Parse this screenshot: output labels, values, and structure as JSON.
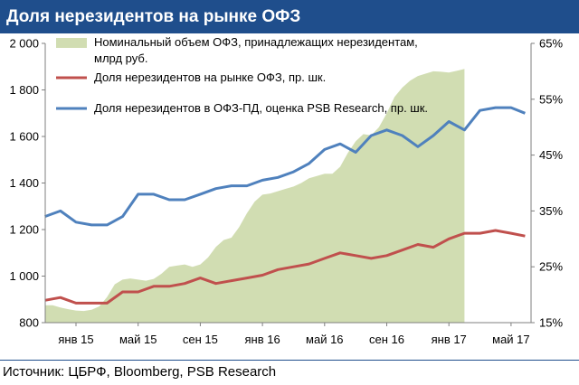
{
  "title": "Доля нерезидентов на рынке ОФЗ",
  "source": "Источник: ЦБРФ, Bloomberg, PSB Research",
  "chart_data": {
    "type": "area+line",
    "x_ticks": [
      "янв 15",
      "май 15",
      "сен 15",
      "янв 16",
      "май 16",
      "сен 16",
      "янв 17",
      "май 17"
    ],
    "y_left": {
      "min": 800,
      "max": 2000,
      "ticks": [
        "800",
        "1 000",
        "1 200",
        "1 400",
        "1 600",
        "1 800",
        "2 000"
      ]
    },
    "y_right": {
      "min": 15,
      "max": 65,
      "unit": "%",
      "ticks": [
        "15%",
        "25%",
        "35%",
        "45%",
        "55%",
        "65%"
      ]
    },
    "grid": false,
    "legend_position": "top",
    "series": [
      {
        "name": "Номинальный объем ОФЗ, принадлежащих нерезидентам, млрд руб.",
        "legend_lines": [
          "Номинальный объем ОФЗ, принадлежащих нерезидентам,",
          "млрд руб."
        ],
        "kind": "area",
        "axis": "left",
        "color": "#d1ddb2",
        "points": [
          [
            0,
            875
          ],
          [
            0.5,
            875
          ],
          [
            1,
            865
          ],
          [
            1.5,
            858
          ],
          [
            2,
            852
          ],
          [
            2.5,
            850
          ],
          [
            3,
            855
          ],
          [
            3.5,
            870
          ],
          [
            4,
            910
          ],
          [
            4.5,
            965
          ],
          [
            5,
            985
          ],
          [
            5.5,
            990
          ],
          [
            6,
            985
          ],
          [
            6.5,
            980
          ],
          [
            7,
            988
          ],
          [
            7.5,
            1010
          ],
          [
            8,
            1040
          ],
          [
            8.5,
            1045
          ],
          [
            9,
            1050
          ],
          [
            9.5,
            1040
          ],
          [
            10,
            1050
          ],
          [
            10.5,
            1080
          ],
          [
            11,
            1125
          ],
          [
            11.5,
            1155
          ],
          [
            12,
            1165
          ],
          [
            12.5,
            1210
          ],
          [
            13,
            1270
          ],
          [
            13.5,
            1320
          ],
          [
            14,
            1350
          ],
          [
            14.5,
            1355
          ],
          [
            15,
            1365
          ],
          [
            15.5,
            1375
          ],
          [
            16,
            1385
          ],
          [
            16.5,
            1400
          ],
          [
            17,
            1420
          ],
          [
            17.5,
            1430
          ],
          [
            18,
            1440
          ],
          [
            18.5,
            1440
          ],
          [
            19,
            1470
          ],
          [
            19.5,
            1530
          ],
          [
            20,
            1580
          ],
          [
            20.5,
            1610
          ],
          [
            21,
            1605
          ],
          [
            21.5,
            1640
          ],
          [
            22,
            1700
          ],
          [
            22.5,
            1770
          ],
          [
            23,
            1810
          ],
          [
            23.5,
            1840
          ],
          [
            24,
            1860
          ],
          [
            24.5,
            1870
          ],
          [
            25,
            1880
          ],
          [
            25.5,
            1878
          ],
          [
            26,
            1875
          ],
          [
            26.5,
            1882
          ],
          [
            27,
            1890
          ]
        ]
      },
      {
        "name": "Доля нерезидентов на рынке ОФЗ, пр. шк.",
        "kind": "line",
        "axis": "right",
        "color": "#c0504d",
        "points": [
          [
            0,
            19
          ],
          [
            1,
            19.5
          ],
          [
            2,
            18.5
          ],
          [
            3,
            18.5
          ],
          [
            4,
            18.5
          ],
          [
            5,
            20.5
          ],
          [
            6,
            20.5
          ],
          [
            7,
            21.5
          ],
          [
            8,
            21.5
          ],
          [
            9,
            22
          ],
          [
            10,
            23
          ],
          [
            11,
            22
          ],
          [
            12,
            22.5
          ],
          [
            13,
            23
          ],
          [
            14,
            23.5
          ],
          [
            15,
            24.5
          ],
          [
            16,
            25
          ],
          [
            17,
            25.5
          ],
          [
            18,
            26.5
          ],
          [
            19,
            27.5
          ],
          [
            20,
            27
          ],
          [
            21,
            26.5
          ],
          [
            22,
            27
          ],
          [
            23,
            28
          ],
          [
            24,
            29
          ],
          [
            25,
            28.5
          ],
          [
            26,
            30
          ],
          [
            27,
            31
          ],
          [
            28,
            31
          ],
          [
            29,
            31.5
          ],
          [
            30,
            31
          ],
          [
            30.9,
            30.5
          ]
        ]
      },
      {
        "name": "Доля нерезидентов в ОФЗ-ПД, оценка PSB Research, пр. шк.",
        "kind": "line",
        "axis": "right",
        "color": "#4f81bd",
        "points": [
          [
            0,
            34
          ],
          [
            1,
            35
          ],
          [
            2,
            33
          ],
          [
            3,
            32.5
          ],
          [
            4,
            32.5
          ],
          [
            5,
            34
          ],
          [
            6,
            38
          ],
          [
            7,
            38
          ],
          [
            8,
            37
          ],
          [
            9,
            37
          ],
          [
            10,
            38
          ],
          [
            11,
            39
          ],
          [
            12,
            39.5
          ],
          [
            13,
            39.5
          ],
          [
            14,
            40.5
          ],
          [
            15,
            41
          ],
          [
            16,
            42
          ],
          [
            17,
            43.5
          ],
          [
            18,
            46
          ],
          [
            19,
            47
          ],
          [
            20,
            45.5
          ],
          [
            21,
            48.5
          ],
          [
            22,
            49.5
          ],
          [
            23,
            48.5
          ],
          [
            24,
            46.5
          ],
          [
            25,
            48.5
          ],
          [
            26,
            51
          ],
          [
            27,
            49.5
          ],
          [
            28,
            53
          ],
          [
            29,
            53.5
          ],
          [
            30,
            53.5
          ],
          [
            30.9,
            52.5
          ]
        ]
      }
    ]
  }
}
